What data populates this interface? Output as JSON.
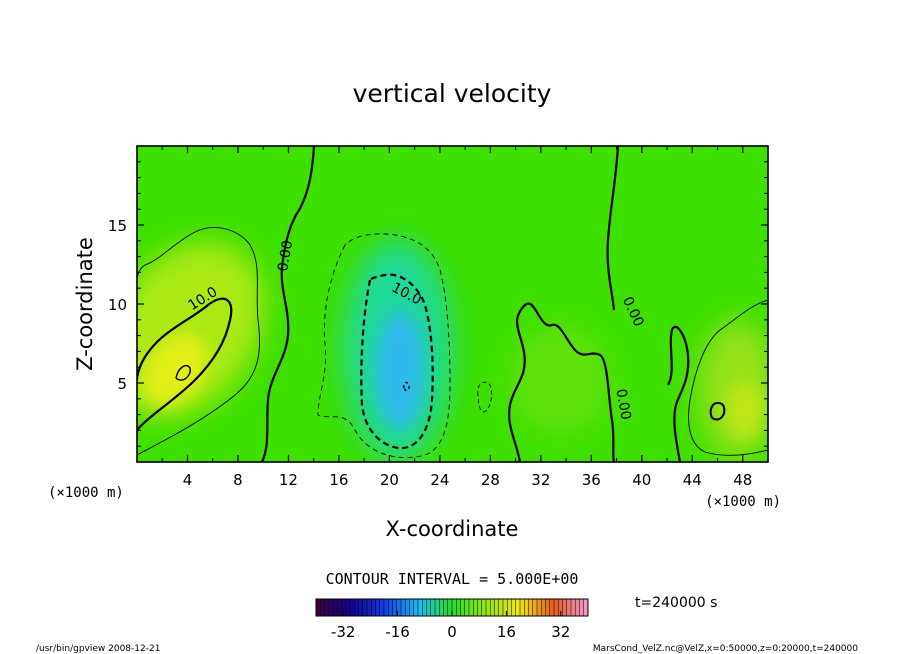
{
  "chart_data": {
    "type": "heatmap",
    "title": "vertical velocity",
    "xlabel": "X-coordinate",
    "ylabel": "Z-coordinate",
    "x_units_left": "(×1000 m)",
    "x_units_right": "(×1000 m)",
    "xlim": [
      0,
      50
    ],
    "ylim": [
      0,
      20
    ],
    "x_ticks": [
      4,
      8,
      12,
      16,
      20,
      24,
      28,
      32,
      36,
      40,
      44,
      48
    ],
    "y_ticks": [
      5,
      10,
      15
    ],
    "contour_interval_text": "CONTOUR INTERVAL = 5.000E+00",
    "contour_labels": [
      {
        "text": "10.0",
        "x": 5.4,
        "y": 10.1,
        "angle": -32
      },
      {
        "text": "0.00",
        "x": 12.1,
        "y": 13.0,
        "angle": -80
      },
      {
        "text": "10.0",
        "x": 21.2,
        "y": 10.4,
        "angle": 28
      },
      {
        "text": "0.00",
        "x": 39.0,
        "y": 9.4,
        "angle": 65
      },
      {
        "text": "0.00",
        "x": 38.2,
        "y": 3.6,
        "angle": 80
      }
    ],
    "features": [
      {
        "name": "updraft-left",
        "x": 4,
        "z": 5.5,
        "value": 12
      },
      {
        "name": "downdraft-center",
        "x": 21,
        "z": 5.5,
        "value": -18
      },
      {
        "name": "updraft-right",
        "x": 47,
        "z": 4,
        "value": 9
      }
    ],
    "colorbar": {
      "ticks": [
        -32,
        -16,
        0,
        16,
        32
      ],
      "range": [
        -40,
        40
      ]
    },
    "time_label": "t=240000 s"
  },
  "footer": {
    "left": "/usr/bin/gpview  2008-12-21",
    "right": "MarsCond_VelZ.nc@VelZ,x=0:50000,z=0:20000,t=240000"
  }
}
